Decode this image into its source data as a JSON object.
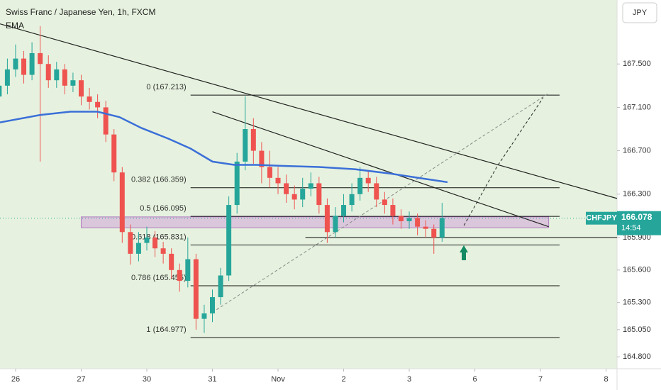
{
  "chart_data": {
    "type": "candlestick",
    "title": "Swiss Franc / Japanese Yen, 1h, FXCM",
    "indicator": "EMA",
    "currency": "JPY",
    "symbol": "CHFJPY",
    "last_price": 166.078,
    "countdown": "14:54",
    "up_color": "#26a69a",
    "down_color": "#ef5350",
    "xlim": [
      18.3,
      244
    ],
    "ylim": [
      164.69,
      168.09
    ],
    "xticks": [
      {
        "value": 24,
        "label": "26"
      },
      {
        "value": 48,
        "label": "27"
      },
      {
        "value": 72,
        "label": "30"
      },
      {
        "value": 96,
        "label": "31"
      },
      {
        "value": 120,
        "label": "Nov"
      },
      {
        "value": 144,
        "label": "2"
      },
      {
        "value": 168,
        "label": "3"
      },
      {
        "value": 192,
        "label": "6"
      },
      {
        "value": 216,
        "label": "7"
      },
      {
        "value": 240,
        "label": "8"
      }
    ],
    "yticks": [
      {
        "value": 164.8,
        "label": "164.800"
      },
      {
        "value": 165.05,
        "label": "165.050"
      },
      {
        "value": 165.3,
        "label": "165.300"
      },
      {
        "value": 165.6,
        "label": "165.600"
      },
      {
        "value": 165.9,
        "label": "165.900"
      },
      {
        "value": 166.3,
        "label": "166.300"
      },
      {
        "value": 166.7,
        "label": "166.700"
      },
      {
        "value": 167.1,
        "label": "167.100"
      },
      {
        "value": 167.5,
        "label": "167.500"
      }
    ],
    "x": [
      18,
      21,
      24,
      27,
      30,
      33,
      36,
      39,
      42,
      45,
      48,
      51,
      54,
      57,
      60,
      63,
      66,
      69,
      72,
      75,
      78,
      81,
      84,
      87,
      90,
      93,
      96,
      99,
      102,
      105,
      108,
      111,
      114,
      117,
      120,
      123,
      126,
      129,
      132,
      135,
      138,
      141,
      144,
      147,
      150,
      153,
      156,
      159,
      162,
      165,
      168,
      171,
      174,
      177,
      180
    ],
    "open": [
      167.2,
      167.3,
      167.45,
      167.55,
      167.4,
      167.6,
      167.5,
      167.35,
      167.45,
      167.3,
      167.35,
      167.2,
      167.15,
      167.1,
      166.85,
      166.5,
      165.95,
      165.75,
      165.85,
      165.9,
      165.8,
      165.75,
      165.6,
      165.5,
      165.7,
      165.15,
      165.2,
      165.35,
      165.55,
      166.2,
      166.6,
      166.9,
      166.7,
      166.55,
      166.45,
      166.4,
      166.3,
      166.25,
      166.35,
      166.4,
      166.2,
      165.95,
      166.1,
      166.2,
      166.3,
      166.45,
      166.4,
      166.25,
      166.2,
      166.1,
      166.05,
      166.08,
      166,
      165.98,
      165.9
    ],
    "high": [
      167.38,
      167.55,
      167.68,
      167.62,
      167.7,
      167.85,
      167.58,
      167.52,
      167.5,
      167.42,
      167.4,
      167.28,
      167.22,
      167.16,
      166.9,
      166.55,
      166.02,
      165.95,
      166,
      165.96,
      165.86,
      165.8,
      165.66,
      165.9,
      165.75,
      165.28,
      165.42,
      165.62,
      166.28,
      166.68,
      167.2,
      167,
      166.78,
      166.7,
      166.55,
      166.48,
      166.38,
      166.45,
      166.5,
      166.46,
      166.26,
      166.18,
      166.3,
      166.4,
      166.55,
      166.52,
      166.46,
      166.32,
      166.26,
      166.16,
      166.14,
      166.12,
      166.06,
      166.02,
      166.22
    ],
    "low": [
      167.14,
      167.22,
      167.38,
      167.32,
      167.35,
      166.6,
      167.28,
      167.28,
      167.22,
      167.24,
      167.12,
      167.08,
      167,
      166.78,
      166.42,
      165.85,
      165.65,
      165.68,
      165.78,
      165.72,
      165.66,
      165.52,
      165.4,
      165.44,
      165.05,
      165.02,
      165.12,
      165.28,
      165.5,
      166.12,
      166.52,
      166.58,
      166.4,
      166.36,
      166.3,
      166.22,
      166.16,
      166.18,
      166.28,
      166.12,
      165.85,
      165.9,
      166.04,
      166.14,
      166.24,
      166.32,
      166.18,
      166.12,
      166.02,
      165.98,
      165.98,
      165.92,
      165.9,
      165.75,
      165.86
    ],
    "close": [
      167.3,
      167.45,
      167.55,
      167.4,
      167.6,
      167.5,
      167.35,
      167.45,
      167.3,
      167.35,
      167.2,
      167.15,
      167.1,
      166.85,
      166.5,
      165.95,
      165.75,
      165.85,
      165.9,
      165.8,
      165.75,
      165.6,
      165.5,
      165.7,
      165.15,
      165.2,
      165.35,
      165.55,
      166.2,
      166.6,
      166.9,
      166.7,
      166.55,
      166.45,
      166.4,
      166.3,
      166.25,
      166.35,
      166.4,
      166.2,
      165.95,
      166.1,
      166.2,
      166.3,
      166.45,
      166.4,
      166.25,
      166.2,
      166.1,
      166.05,
      166.08,
      166,
      165.98,
      165.9,
      166.08
    ],
    "ema": {
      "color": "#3b6fd8",
      "x": [
        18,
        33,
        44,
        54,
        62,
        70,
        80,
        88,
        96,
        104,
        112,
        122,
        135,
        148,
        161,
        174,
        182
      ],
      "values": [
        166.96,
        167.03,
        167.06,
        167.06,
        167.01,
        166.91,
        166.81,
        166.72,
        166.6,
        166.57,
        166.57,
        166.56,
        166.55,
        166.53,
        166.49,
        166.44,
        166.41
      ]
    },
    "fib": {
      "x": [
        88,
        223
      ],
      "levels": [
        {
          "label": "0 (167.213)",
          "value": 167.213
        },
        {
          "label": "0.382 (166.359)",
          "value": 166.359
        },
        {
          "label": "0.5 (166.095)",
          "value": 166.095
        },
        {
          "label": "0.618 (165.831)",
          "value": 165.831
        },
        {
          "label": "0.786 (165.455)",
          "value": 165.455
        },
        {
          "label": "1 (164.977)",
          "value": 164.977
        }
      ]
    },
    "trendlines": [
      {
        "x": [
          18.3,
          244
        ],
        "y": [
          167.87,
          166.26
        ]
      },
      {
        "x": [
          96,
          219
        ],
        "y": [
          167.06,
          166
        ]
      },
      {
        "x": [
          130,
          244
        ],
        "y": [
          165.9,
          165.9
        ]
      }
    ],
    "dashed_lines": [
      {
        "x": [
          96,
          219
        ],
        "y": [
          165.21,
          167.23
        ]
      },
      {
        "x": [
          188,
          200,
          217
        ],
        "y": [
          166.01,
          166.55,
          167.19
        ]
      }
    ],
    "zone": {
      "x": [
        48,
        219
      ],
      "y": [
        165.99,
        166.09
      ]
    }
  }
}
